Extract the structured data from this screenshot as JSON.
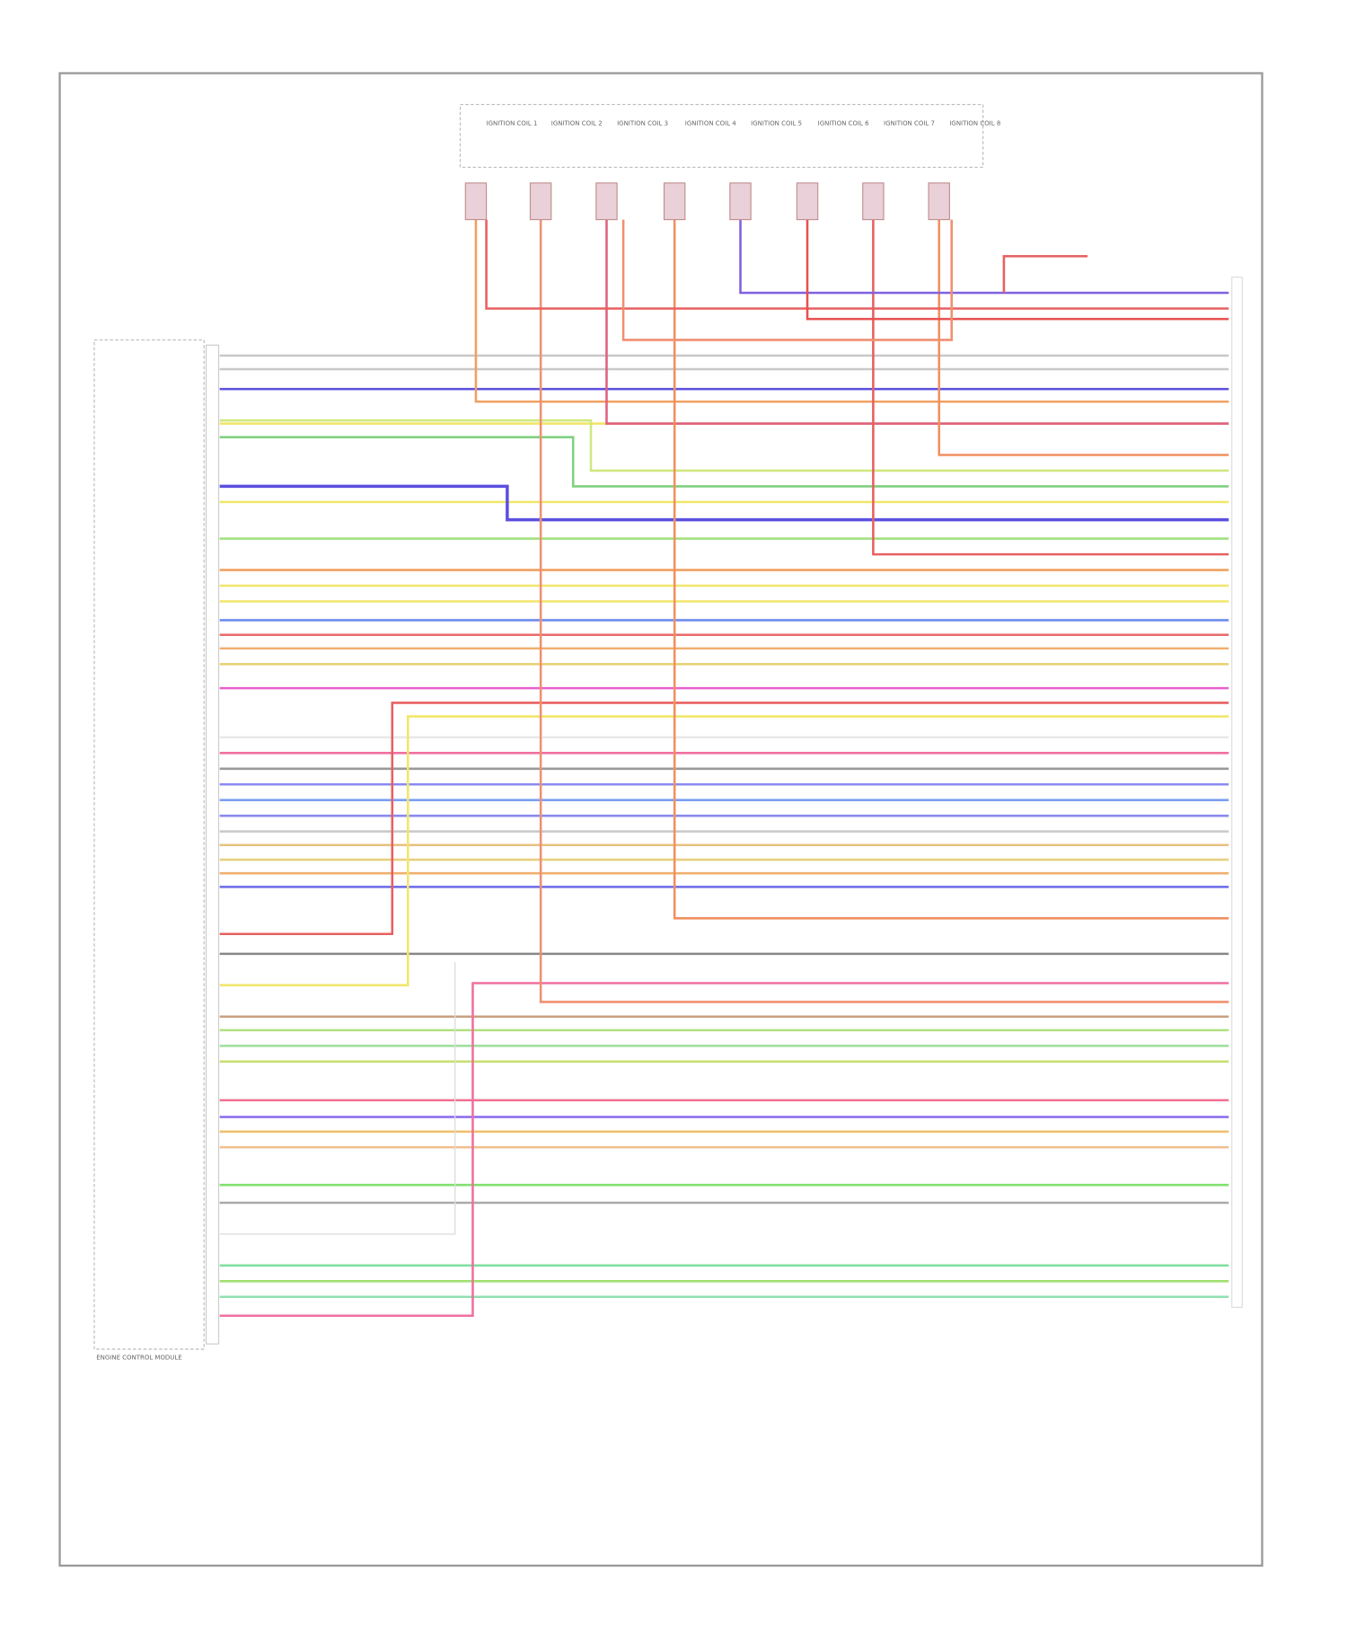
{
  "coils": [
    {
      "label": "IGNITION COIL 1"
    },
    {
      "label": "IGNITION COIL 2"
    },
    {
      "label": "IGNITION COIL 3"
    },
    {
      "label": "IGNITION COIL 4"
    },
    {
      "label": "IGNITION COIL 5"
    },
    {
      "label": "IGNITION COIL 6"
    },
    {
      "label": "IGNITION COIL 7"
    },
    {
      "label": "IGNITION COIL 8"
    }
  ],
  "module": {
    "label": "ENGINE CONTROL MODULE"
  }
}
